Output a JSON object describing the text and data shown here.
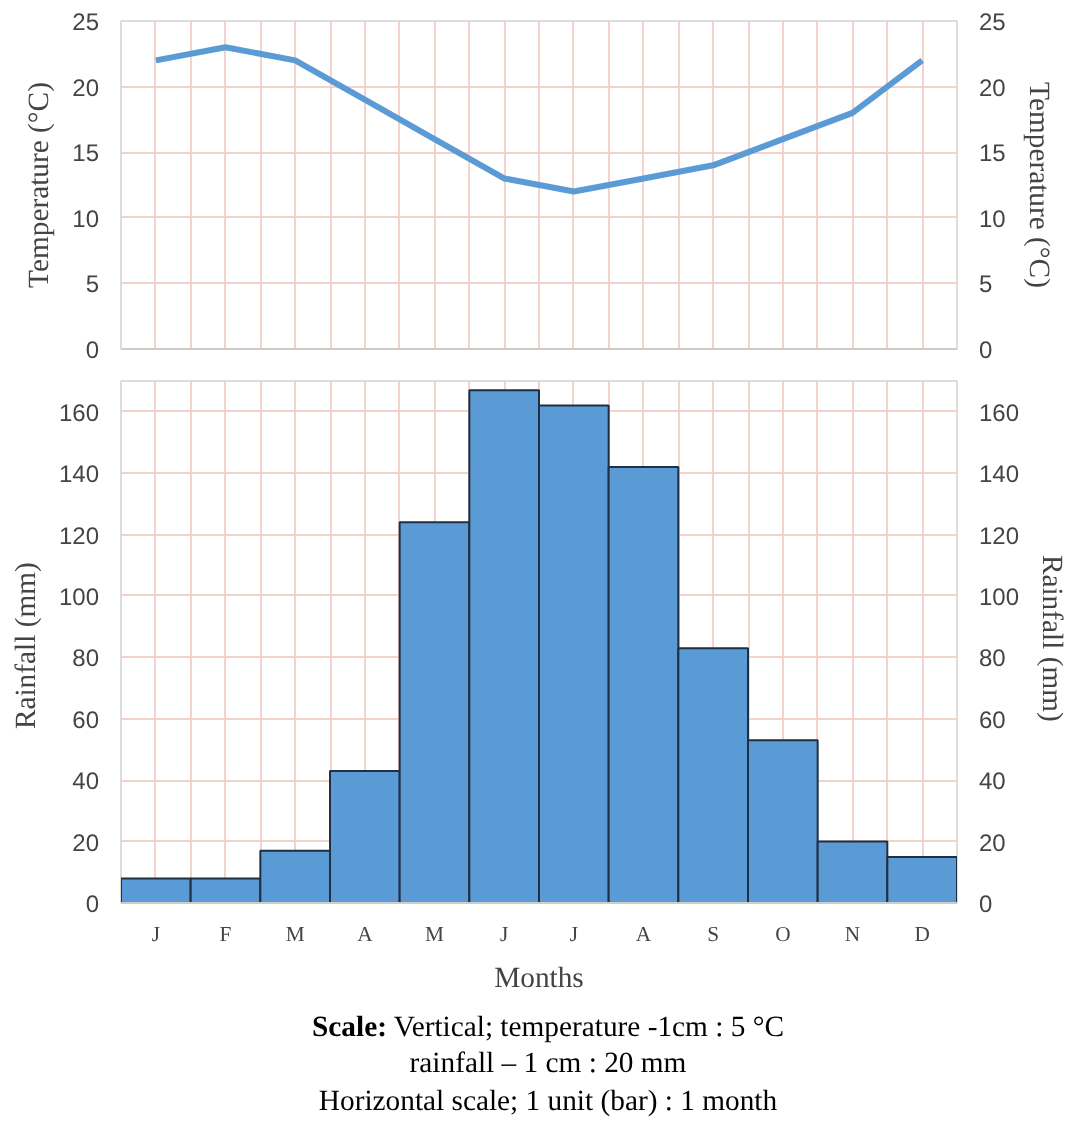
{
  "chart_data": [
    {
      "type": "line",
      "categories": [
        null,
        null,
        null,
        null,
        null,
        null,
        null,
        null,
        null,
        null,
        null,
        null
      ],
      "ylabel": "Temperature (°C)",
      "y2label": "Temperature (°C)",
      "series": [
        {
          "color": "#5b9bd5",
          "values": [
            22,
            23,
            22,
            19,
            16,
            13,
            12,
            13,
            14,
            16,
            18,
            22
          ]
        }
      ],
      "ylim": [
        0,
        25
      ],
      "yticks": [
        0,
        5,
        10,
        15,
        20,
        25
      ],
      "y2lim": [
        0,
        25
      ],
      "y2ticks": [
        0,
        5,
        10,
        15,
        20,
        25
      ],
      "grid": true,
      "tick_labels": "y",
      "marker": "none",
      "line_style": "solid"
    },
    {
      "type": "bar",
      "categories": [
        "J",
        "F",
        "M",
        "A",
        "M",
        "J",
        "J",
        "A",
        "S",
        "O",
        "N",
        "D"
      ],
      "xlabel": "Months",
      "ylabel": "Rainfall  (mm)",
      "y2label": "Rainfall  (mm)",
      "series": [
        {
          "color": "#5b9bd5",
          "values": [
            8,
            8,
            17,
            43,
            124,
            167,
            162,
            142,
            83,
            53,
            20,
            15
          ]
        }
      ],
      "ylim": [
        0,
        170
      ],
      "yticks": [
        0,
        20,
        40,
        60,
        80,
        100,
        120,
        140,
        160
      ],
      "y2lim": [
        0,
        170
      ],
      "y2ticks": [
        0,
        20,
        40,
        60,
        80,
        100,
        120,
        140,
        160
      ],
      "grid": true,
      "annotations": [
        "Scale: Vertical; temperature -1cm : 5 °C",
        "rainfall – 1 cm : 20 mm",
        "Horizontal scale; 1 unit (bar) : 1 month"
      ]
    }
  ]
}
